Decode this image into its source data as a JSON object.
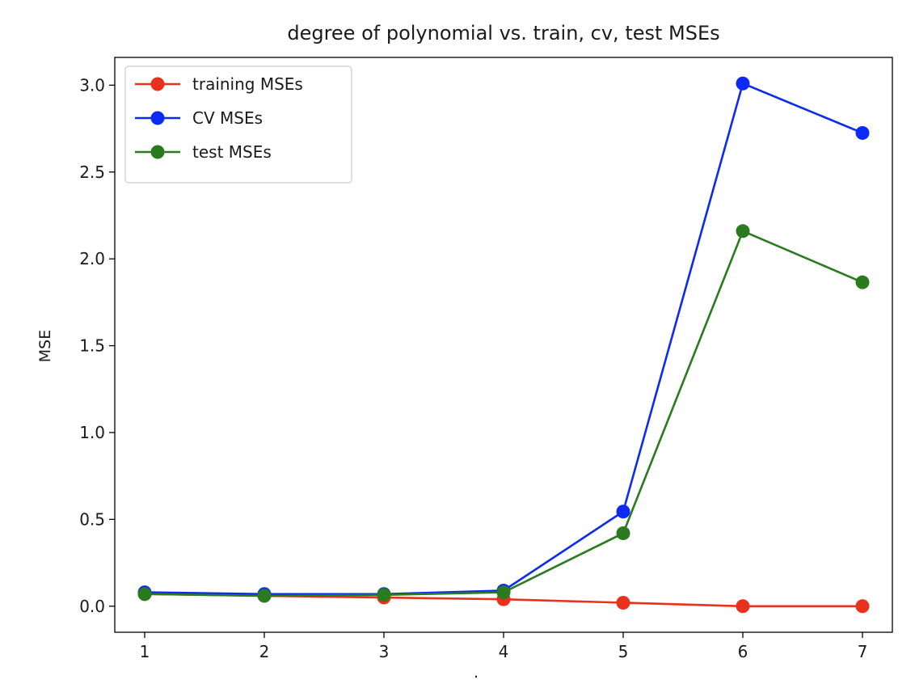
{
  "chart_data": {
    "type": "line",
    "title": "degree of polynomial vs. train, cv, test MSEs",
    "xlabel": ".",
    "ylabel": "MSE",
    "x": [
      1,
      2,
      3,
      4,
      5,
      6,
      7
    ],
    "xlim": [
      0.75,
      7.25
    ],
    "ylim": [
      -0.15,
      3.16
    ],
    "xticks": [
      1,
      2,
      3,
      4,
      5,
      6,
      7
    ],
    "yticks": [
      0.0,
      0.5,
      1.0,
      1.5,
      2.0,
      2.5,
      3.0
    ],
    "ytick_labels": [
      "0.0",
      "0.5",
      "1.0",
      "1.5",
      "2.0",
      "2.5",
      "3.0"
    ],
    "grid": false,
    "legend_position": "top-left",
    "series": [
      {
        "name": "training MSEs",
        "color": "#e8321c",
        "marker": "circle",
        "values": [
          0.07,
          0.06,
          0.05,
          0.04,
          0.02,
          0.0,
          0.0
        ]
      },
      {
        "name": "CV MSEs",
        "color": "#0b2af5",
        "marker": "circle",
        "values": [
          0.08,
          0.07,
          0.07,
          0.09,
          0.545,
          3.01,
          2.725
        ]
      },
      {
        "name": "test MSEs",
        "color": "#2a7a1e",
        "marker": "circle",
        "values": [
          0.07,
          0.06,
          0.065,
          0.08,
          0.42,
          2.16,
          1.865
        ]
      }
    ]
  }
}
